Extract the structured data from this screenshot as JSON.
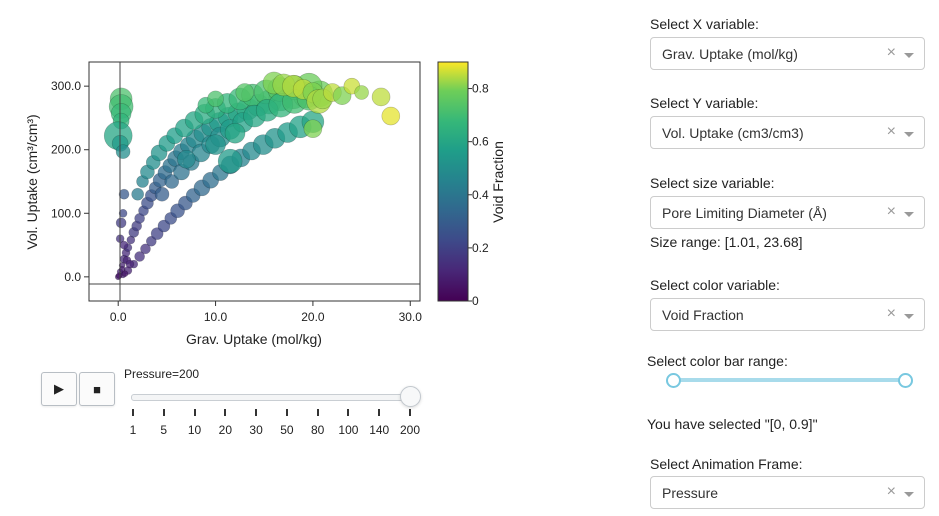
{
  "chart_data": {
    "type": "scatter",
    "xlabel": "Grav. Uptake (mol/kg)",
    "ylabel": "Vol. Uptake (cm³/cm³)",
    "xlim": [
      -3,
      31
    ],
    "ylim": [
      -38,
      338
    ],
    "x_ticks": [
      "0.0",
      "10.0",
      "20.0",
      "30.0"
    ],
    "y_ticks": [
      "0.0",
      "100.0",
      "200.0",
      "300.0"
    ],
    "colorbar": {
      "title": "Void Fraction",
      "range": [
        0,
        0.9
      ],
      "ticks": [
        "0",
        "0.2",
        "0.4",
        "0.6",
        "0.8"
      ],
      "colorscale": "Viridis"
    },
    "size_variable": "Pore Limiting Diameter (Å)",
    "grid": false,
    "points": [
      {
        "x": 0.0,
        "y": 0,
        "s": 3,
        "c": 0.08
      },
      {
        "x": 0.2,
        "y": 8,
        "s": 3,
        "c": 0.1
      },
      {
        "x": 0.4,
        "y": 18,
        "s": 3,
        "c": 0.1
      },
      {
        "x": 0.6,
        "y": 28,
        "s": 4,
        "c": 0.12
      },
      {
        "x": 0.8,
        "y": 38,
        "s": 4,
        "c": 0.12
      },
      {
        "x": 1.0,
        "y": 46,
        "s": 4,
        "c": 0.15
      },
      {
        "x": 1.3,
        "y": 58,
        "s": 4,
        "c": 0.15
      },
      {
        "x": 1.6,
        "y": 70,
        "s": 5,
        "c": 0.18
      },
      {
        "x": 1.9,
        "y": 80,
        "s": 5,
        "c": 0.18
      },
      {
        "x": 2.2,
        "y": 92,
        "s": 5,
        "c": 0.2
      },
      {
        "x": 2.6,
        "y": 104,
        "s": 5,
        "c": 0.22
      },
      {
        "x": 3.0,
        "y": 116,
        "s": 6,
        "c": 0.24
      },
      {
        "x": 3.4,
        "y": 128,
        "s": 6,
        "c": 0.26
      },
      {
        "x": 3.8,
        "y": 140,
        "s": 6,
        "c": 0.3
      },
      {
        "x": 4.3,
        "y": 152,
        "s": 7,
        "c": 0.32
      },
      {
        "x": 4.8,
        "y": 164,
        "s": 7,
        "c": 0.35
      },
      {
        "x": 5.3,
        "y": 175,
        "s": 7,
        "c": 0.38
      },
      {
        "x": 5.9,
        "y": 186,
        "s": 8,
        "c": 0.4
      },
      {
        "x": 6.5,
        "y": 197,
        "s": 8,
        "c": 0.42
      },
      {
        "x": 7.2,
        "y": 207,
        "s": 8,
        "c": 0.45
      },
      {
        "x": 7.9,
        "y": 217,
        "s": 9,
        "c": 0.48
      },
      {
        "x": 8.7,
        "y": 226,
        "s": 9,
        "c": 0.5
      },
      {
        "x": 9.5,
        "y": 235,
        "s": 9,
        "c": 0.52
      },
      {
        "x": 10.4,
        "y": 243,
        "s": 10,
        "c": 0.55
      },
      {
        "x": 11.3,
        "y": 251,
        "s": 10,
        "c": 0.58
      },
      {
        "x": 12.3,
        "y": 258,
        "s": 10,
        "c": 0.6
      },
      {
        "x": 13.3,
        "y": 264,
        "s": 11,
        "c": 0.62
      },
      {
        "x": 14.4,
        "y": 270,
        "s": 11,
        "c": 0.65
      },
      {
        "x": 15.5,
        "y": 275,
        "s": 12,
        "c": 0.68
      },
      {
        "x": 16.7,
        "y": 280,
        "s": 12,
        "c": 0.7
      },
      {
        "x": 18.0,
        "y": 283,
        "s": 12,
        "c": 0.72
      },
      {
        "x": 19.3,
        "y": 286,
        "s": 13,
        "c": 0.75
      },
      {
        "x": 20.7,
        "y": 288,
        "s": 13,
        "c": 0.78
      },
      {
        "x": 0.5,
        "y": 3,
        "s": 3,
        "c": 0.1
      },
      {
        "x": 1.0,
        "y": 10,
        "s": 4,
        "c": 0.1
      },
      {
        "x": 1.6,
        "y": 20,
        "s": 4,
        "c": 0.12
      },
      {
        "x": 2.2,
        "y": 32,
        "s": 5,
        "c": 0.14
      },
      {
        "x": 2.8,
        "y": 44,
        "s": 5,
        "c": 0.15
      },
      {
        "x": 3.4,
        "y": 56,
        "s": 5,
        "c": 0.18
      },
      {
        "x": 4.0,
        "y": 68,
        "s": 6,
        "c": 0.2
      },
      {
        "x": 4.7,
        "y": 80,
        "s": 6,
        "c": 0.22
      },
      {
        "x": 5.4,
        "y": 92,
        "s": 6,
        "c": 0.24
      },
      {
        "x": 6.1,
        "y": 104,
        "s": 7,
        "c": 0.26
      },
      {
        "x": 6.9,
        "y": 116,
        "s": 7,
        "c": 0.28
      },
      {
        "x": 7.7,
        "y": 128,
        "s": 7,
        "c": 0.32
      },
      {
        "x": 8.6,
        "y": 140,
        "s": 8,
        "c": 0.34
      },
      {
        "x": 9.5,
        "y": 152,
        "s": 8,
        "c": 0.36
      },
      {
        "x": 10.5,
        "y": 164,
        "s": 8,
        "c": 0.4
      },
      {
        "x": 11.5,
        "y": 176,
        "s": 9,
        "c": 0.42
      },
      {
        "x": 12.6,
        "y": 187,
        "s": 9,
        "c": 0.45
      },
      {
        "x": 13.7,
        "y": 198,
        "s": 9,
        "c": 0.48
      },
      {
        "x": 14.9,
        "y": 208,
        "s": 10,
        "c": 0.5
      },
      {
        "x": 16.1,
        "y": 218,
        "s": 10,
        "c": 0.52
      },
      {
        "x": 17.4,
        "y": 227,
        "s": 10,
        "c": 0.55
      },
      {
        "x": 18.7,
        "y": 236,
        "s": 11,
        "c": 0.58
      },
      {
        "x": 20.0,
        "y": 244,
        "s": 11,
        "c": 0.6
      },
      {
        "x": 2.0,
        "y": 130,
        "s": 6,
        "c": 0.42
      },
      {
        "x": 2.5,
        "y": 150,
        "s": 6,
        "c": 0.45
      },
      {
        "x": 3.0,
        "y": 165,
        "s": 7,
        "c": 0.48
      },
      {
        "x": 3.6,
        "y": 180,
        "s": 7,
        "c": 0.5
      },
      {
        "x": 4.2,
        "y": 195,
        "s": 8,
        "c": 0.52
      },
      {
        "x": 5.0,
        "y": 210,
        "s": 8,
        "c": 0.55
      },
      {
        "x": 5.8,
        "y": 222,
        "s": 8,
        "c": 0.56
      },
      {
        "x": 6.8,
        "y": 234,
        "s": 9,
        "c": 0.58
      },
      {
        "x": 7.8,
        "y": 246,
        "s": 9,
        "c": 0.6
      },
      {
        "x": 8.9,
        "y": 256,
        "s": 10,
        "c": 0.62
      },
      {
        "x": 10.0,
        "y": 265,
        "s": 10,
        "c": 0.64
      },
      {
        "x": 11.2,
        "y": 273,
        "s": 10,
        "c": 0.66
      },
      {
        "x": 12.5,
        "y": 280,
        "s": 11,
        "c": 0.68
      },
      {
        "x": 13.8,
        "y": 286,
        "s": 11,
        "c": 0.7
      },
      {
        "x": 15.2,
        "y": 291,
        "s": 12,
        "c": 0.72
      },
      {
        "x": 16.6,
        "y": 295,
        "s": 12,
        "c": 0.74
      },
      {
        "x": 18.1,
        "y": 298,
        "s": 12,
        "c": 0.76
      },
      {
        "x": 19.6,
        "y": 300,
        "s": 13,
        "c": 0.78
      },
      {
        "x": 4.5,
        "y": 130,
        "s": 7,
        "c": 0.3
      },
      {
        "x": 5.5,
        "y": 150,
        "s": 7,
        "c": 0.34
      },
      {
        "x": 6.5,
        "y": 165,
        "s": 8,
        "c": 0.38
      },
      {
        "x": 7.5,
        "y": 180,
        "s": 8,
        "c": 0.42
      },
      {
        "x": 8.5,
        "y": 195,
        "s": 9,
        "c": 0.46
      },
      {
        "x": 9.5,
        "y": 208,
        "s": 9,
        "c": 0.48
      },
      {
        "x": 10.5,
        "y": 220,
        "s": 10,
        "c": 0.5
      },
      {
        "x": 11.5,
        "y": 232,
        "s": 10,
        "c": 0.55
      },
      {
        "x": 12.8,
        "y": 243,
        "s": 10,
        "c": 0.58
      },
      {
        "x": 14.0,
        "y": 253,
        "s": 11,
        "c": 0.6
      },
      {
        "x": 15.3,
        "y": 262,
        "s": 11,
        "c": 0.62
      },
      {
        "x": 16.7,
        "y": 270,
        "s": 12,
        "c": 0.66
      },
      {
        "x": 18.1,
        "y": 276,
        "s": 12,
        "c": 0.7
      },
      {
        "x": 19.6,
        "y": 281,
        "s": 12,
        "c": 0.72
      },
      {
        "x": 9.0,
        "y": 270,
        "s": 8,
        "c": 0.68
      },
      {
        "x": 10.0,
        "y": 280,
        "s": 8,
        "c": 0.72
      },
      {
        "x": 13.0,
        "y": 290,
        "s": 9,
        "c": 0.74
      },
      {
        "x": 16.0,
        "y": 305,
        "s": 11,
        "c": 0.8
      },
      {
        "x": 17.0,
        "y": 302,
        "s": 11,
        "c": 0.82
      },
      {
        "x": 18.0,
        "y": 300,
        "s": 11,
        "c": 0.84
      },
      {
        "x": 19.0,
        "y": 295,
        "s": 10,
        "c": 0.85
      },
      {
        "x": 20.0,
        "y": 290,
        "s": 10,
        "c": 0.8
      },
      {
        "x": 20.6,
        "y": 276,
        "s": 12,
        "c": 0.84
      },
      {
        "x": 21.0,
        "y": 280,
        "s": 10,
        "c": 0.82
      },
      {
        "x": 22.0,
        "y": 290,
        "s": 9,
        "c": 0.85
      },
      {
        "x": 23.0,
        "y": 285,
        "s": 9,
        "c": 0.8
      },
      {
        "x": 24.0,
        "y": 300,
        "s": 8,
        "c": 0.86
      },
      {
        "x": 25.0,
        "y": 290,
        "s": 7,
        "c": 0.82
      },
      {
        "x": 27.0,
        "y": 283,
        "s": 9,
        "c": 0.85
      },
      {
        "x": 28.0,
        "y": 253,
        "s": 9,
        "c": 0.88
      },
      {
        "x": 20.0,
        "y": 233,
        "s": 9,
        "c": 0.8
      },
      {
        "x": 11.5,
        "y": 182,
        "s": 12,
        "c": 0.55
      },
      {
        "x": 10.0,
        "y": 208,
        "s": 10,
        "c": 0.52
      },
      {
        "x": 7.0,
        "y": 185,
        "s": 9,
        "c": 0.48
      },
      {
        "x": 12.0,
        "y": 226,
        "s": 10,
        "c": 0.6
      },
      {
        "x": 0.3,
        "y": 280,
        "s": 11,
        "c": 0.72
      },
      {
        "x": 0.3,
        "y": 268,
        "s": 12,
        "c": 0.7
      },
      {
        "x": 0.3,
        "y": 257,
        "s": 10,
        "c": 0.68
      },
      {
        "x": 0.3,
        "y": 245,
        "s": 8,
        "c": 0.66
      },
      {
        "x": 0.0,
        "y": 222,
        "s": 14,
        "c": 0.6
      },
      {
        "x": 0.2,
        "y": 210,
        "s": 8,
        "c": 0.55
      },
      {
        "x": 0.5,
        "y": 197,
        "s": 7,
        "c": 0.5
      },
      {
        "x": 0.6,
        "y": 130,
        "s": 5,
        "c": 0.28
      },
      {
        "x": 0.5,
        "y": 100,
        "s": 4,
        "c": 0.22
      },
      {
        "x": 0.3,
        "y": 85,
        "s": 5,
        "c": 0.18
      },
      {
        "x": 0.2,
        "y": 60,
        "s": 4,
        "c": 0.15
      },
      {
        "x": 0.6,
        "y": 50,
        "s": 4,
        "c": 0.12
      },
      {
        "x": 0.9,
        "y": 26,
        "s": 4,
        "c": 0.1
      },
      {
        "x": 1.2,
        "y": 20,
        "s": 4,
        "c": 0.1
      },
      {
        "x": 0.4,
        "y": 12,
        "s": 3,
        "c": 0.08
      },
      {
        "x": 0.7,
        "y": 5,
        "s": 3,
        "c": 0.06
      },
      {
        "x": 0.1,
        "y": 2,
        "s": 3,
        "c": 0.05
      }
    ]
  },
  "animation": {
    "play_label": "▶",
    "stop_label": "■",
    "current_frame_label": "Pressure=200",
    "steps": [
      "1",
      "5",
      "10",
      "20",
      "30",
      "50",
      "80",
      "100",
      "140",
      "200"
    ],
    "current_index": 9
  },
  "controls": {
    "x_label": "Select X variable:",
    "x_value": "Grav. Uptake (mol/kg)",
    "y_label": "Select Y variable:",
    "y_value": "Vol. Uptake (cm3/cm3)",
    "size_label": "Select size variable:",
    "size_value": "Pore Limiting Diameter (Å)",
    "size_range_text": "Size range: [1.01, 23.68]",
    "color_label": "Select color variable:",
    "color_value": "Void Fraction",
    "color_range_label": "Select color bar range:",
    "color_range": [
      0,
      0.9
    ],
    "selected_text": "You have selected \"[0, 0.9]\"",
    "frame_label": "Select Animation Frame:",
    "frame_value": "Pressure",
    "clear_symbol": "×"
  }
}
